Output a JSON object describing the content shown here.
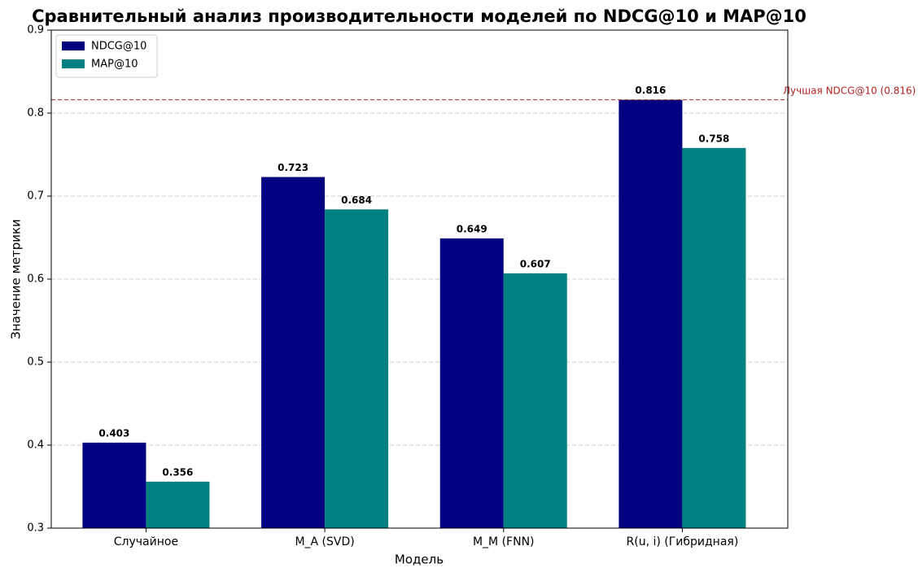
{
  "chart_data": {
    "type": "bar",
    "title": "Сравнительный анализ производительности моделей по NDCG@10 и MAP@10",
    "x_label": "Модель",
    "y_label": "Значение метрики",
    "categories": [
      "Случайное",
      "M_A (SVD)",
      "M_M (FNN)",
      "R(u, i) (Гибридная)"
    ],
    "series": [
      {
        "name": "NDCG@10",
        "color": "#000080",
        "values": [
          0.403,
          0.723,
          0.649,
          0.816
        ]
      },
      {
        "name": "MAP@10",
        "color": "#008080",
        "values": [
          0.356,
          0.684,
          0.607,
          0.758
        ]
      }
    ],
    "ylim": [
      0.3,
      0.9
    ],
    "yticks": [
      0.3,
      0.4,
      0.5,
      0.6,
      0.7,
      0.8,
      0.9
    ],
    "grid": true,
    "legend": "upper-left",
    "reference_line": {
      "value": 0.816,
      "label": "Лучшая NDCG@10 (0.816)",
      "color": "#b22222"
    }
  }
}
